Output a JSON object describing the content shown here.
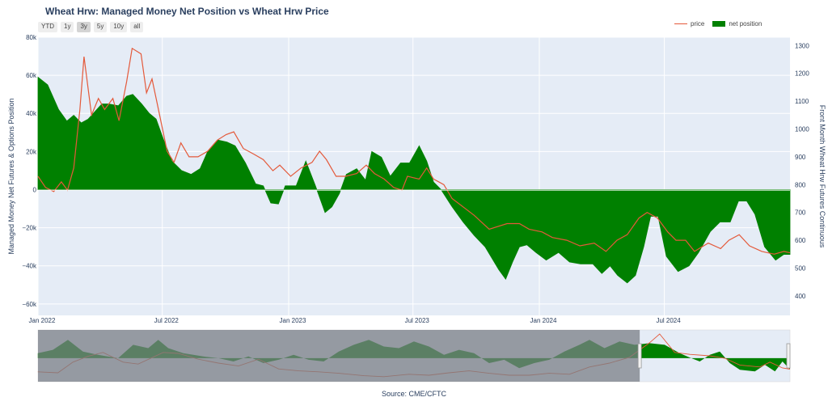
{
  "title": "Wheat Hrw: Managed Money Net Position vs Wheat Hrw Price",
  "range_buttons": [
    {
      "label": "YTD"
    },
    {
      "label": "1y"
    },
    {
      "label": "3y",
      "active": true
    },
    {
      "label": "5y"
    },
    {
      "label": "10y"
    },
    {
      "label": "all"
    }
  ],
  "legend": {
    "price": "price",
    "net_position": "net position"
  },
  "source": "Source: CME/CFTC",
  "colors": {
    "price": "#e4593a",
    "net_position": "#008000",
    "plot_bg": "#e5ecf6"
  },
  "chart_data": {
    "type": "area",
    "title": "Wheat Hrw: Managed Money Net Position vs Wheat Hrw Price",
    "x_range": [
      "2022-01-01",
      "2024-12-31"
    ],
    "xlabel": "",
    "ylabel_left": "Managed Money Net Futures & Options Position",
    "ylabel_right": "Front Month Wheat Hrw Futures Continuous",
    "ylim_left": [
      -66000,
      80000
    ],
    "ylim_right": [
      330,
      1330
    ],
    "x_ticks": [
      {
        "date": "2022-01-01",
        "label": "Jan 2022"
      },
      {
        "date": "2022-07-01",
        "label": "Jul 2022"
      },
      {
        "date": "2023-01-01",
        "label": "Jan 2023"
      },
      {
        "date": "2023-07-01",
        "label": "Jul 2023"
      },
      {
        "date": "2024-01-01",
        "label": "Jan 2024"
      },
      {
        "date": "2024-07-01",
        "label": "Jul 2024"
      }
    ],
    "y_ticks_left": [
      {
        "value": 80000,
        "label": "80k"
      },
      {
        "value": 60000,
        "label": "60k"
      },
      {
        "value": 40000,
        "label": "40k"
      },
      {
        "value": 20000,
        "label": "20k"
      },
      {
        "value": 0,
        "label": "0"
      },
      {
        "value": -20000,
        "label": "−20k"
      },
      {
        "value": -40000,
        "label": "−40k"
      },
      {
        "value": -60000,
        "label": "−60k"
      }
    ],
    "y_ticks_right": [
      {
        "value": 1300,
        "label": "1300"
      },
      {
        "value": 1200,
        "label": "1200"
      },
      {
        "value": 1100,
        "label": "1100"
      },
      {
        "value": 1000,
        "label": "1000"
      },
      {
        "value": 900,
        "label": "900"
      },
      {
        "value": 800,
        "label": "800"
      },
      {
        "value": 700,
        "label": "700"
      },
      {
        "value": 600,
        "label": "600"
      },
      {
        "value": 500,
        "label": "500"
      },
      {
        "value": 400,
        "label": "400"
      }
    ],
    "series": [
      {
        "name": "net position",
        "axis": "left",
        "points": [
          [
            "2022-01-01",
            59000
          ],
          [
            "2022-01-15",
            55000
          ],
          [
            "2022-01-31",
            42000
          ],
          [
            "2022-02-12",
            36000
          ],
          [
            "2022-02-22",
            39000
          ],
          [
            "2022-03-05",
            35000
          ],
          [
            "2022-03-15",
            37000
          ],
          [
            "2022-03-25",
            41000
          ],
          [
            "2022-04-04",
            45000
          ],
          [
            "2022-04-14",
            45000
          ],
          [
            "2022-04-28",
            44000
          ],
          [
            "2022-05-10",
            49000
          ],
          [
            "2022-05-19",
            50000
          ],
          [
            "2022-06-01",
            45000
          ],
          [
            "2022-06-12",
            40000
          ],
          [
            "2022-06-22",
            37000
          ],
          [
            "2022-07-02",
            27000
          ],
          [
            "2022-07-15",
            15000
          ],
          [
            "2022-07-29",
            10000
          ],
          [
            "2022-08-12",
            8000
          ],
          [
            "2022-08-25",
            11000
          ],
          [
            "2022-09-05",
            20000
          ],
          [
            "2022-09-20",
            26000
          ],
          [
            "2022-10-03",
            25000
          ],
          [
            "2022-10-15",
            23000
          ],
          [
            "2022-10-30",
            14000
          ],
          [
            "2022-11-14",
            3000
          ],
          [
            "2022-11-25",
            2000
          ],
          [
            "2022-12-06",
            -7000
          ],
          [
            "2022-12-17",
            -7500
          ],
          [
            "2022-12-27",
            2000
          ],
          [
            "2023-01-12",
            2000
          ],
          [
            "2023-01-26",
            15000
          ],
          [
            "2023-02-09",
            2000
          ],
          [
            "2023-02-23",
            -12000
          ],
          [
            "2023-03-05",
            -9000
          ],
          [
            "2023-03-16",
            -2000
          ],
          [
            "2023-03-26",
            8000
          ],
          [
            "2023-04-10",
            11000
          ],
          [
            "2023-04-23",
            5000
          ],
          [
            "2023-05-02",
            20000
          ],
          [
            "2023-05-16",
            17000
          ],
          [
            "2023-05-29",
            7000
          ],
          [
            "2023-06-13",
            14000
          ],
          [
            "2023-06-26",
            14000
          ],
          [
            "2023-07-10",
            23000
          ],
          [
            "2023-07-21",
            15000
          ],
          [
            "2023-07-31",
            4000
          ],
          [
            "2023-08-11",
            0
          ],
          [
            "2023-08-27",
            -9000
          ],
          [
            "2023-09-12",
            -17000
          ],
          [
            "2023-09-28",
            -24000
          ],
          [
            "2023-10-14",
            -30000
          ],
          [
            "2023-11-03",
            -42000
          ],
          [
            "2023-11-13",
            -47000
          ],
          [
            "2023-11-23",
            -38000
          ],
          [
            "2023-12-03",
            -30000
          ],
          [
            "2023-12-14",
            -29000
          ],
          [
            "2023-12-27",
            -33000
          ],
          [
            "2024-01-11",
            -37000
          ],
          [
            "2024-01-29",
            -33000
          ],
          [
            "2024-02-14",
            -38000
          ],
          [
            "2024-03-01",
            -39000
          ],
          [
            "2024-03-19",
            -39000
          ],
          [
            "2024-04-01",
            -44000
          ],
          [
            "2024-04-13",
            -40000
          ],
          [
            "2024-04-24",
            -45000
          ],
          [
            "2024-05-08",
            -49000
          ],
          [
            "2024-05-20",
            -45000
          ],
          [
            "2024-06-01",
            -30000
          ],
          [
            "2024-06-11",
            -14000
          ],
          [
            "2024-06-22",
            -14000
          ],
          [
            "2024-07-04",
            -35000
          ],
          [
            "2024-07-21",
            -43000
          ],
          [
            "2024-08-06",
            -40000
          ],
          [
            "2024-08-20",
            -33000
          ],
          [
            "2024-09-06",
            -22000
          ],
          [
            "2024-09-20",
            -17000
          ],
          [
            "2024-10-05",
            -17000
          ],
          [
            "2024-10-17",
            -6000
          ],
          [
            "2024-10-29",
            -6000
          ],
          [
            "2024-11-10",
            -13000
          ],
          [
            "2024-11-24",
            -30000
          ],
          [
            "2024-12-10",
            -37000
          ],
          [
            "2024-12-22",
            -34000
          ],
          [
            "2024-12-31",
            -34000
          ]
        ]
      },
      {
        "name": "price",
        "axis": "right",
        "points": [
          [
            "2022-01-01",
            830
          ],
          [
            "2022-01-12",
            790
          ],
          [
            "2022-01-24",
            775
          ],
          [
            "2022-02-04",
            810
          ],
          [
            "2022-02-13",
            780
          ],
          [
            "2022-02-22",
            860
          ],
          [
            "2022-03-03",
            1070
          ],
          [
            "2022-03-09",
            1260
          ],
          [
            "2022-03-20",
            1050
          ],
          [
            "2022-03-30",
            1110
          ],
          [
            "2022-04-08",
            1070
          ],
          [
            "2022-04-20",
            1110
          ],
          [
            "2022-04-29",
            1030
          ],
          [
            "2022-05-10",
            1170
          ],
          [
            "2022-05-18",
            1290
          ],
          [
            "2022-05-31",
            1270
          ],
          [
            "2022-06-08",
            1130
          ],
          [
            "2022-06-16",
            1180
          ],
          [
            "2022-06-22",
            1110
          ],
          [
            "2022-07-08",
            920
          ],
          [
            "2022-07-18",
            880
          ],
          [
            "2022-07-28",
            950
          ],
          [
            "2022-08-09",
            900
          ],
          [
            "2022-08-22",
            900
          ],
          [
            "2022-09-05",
            920
          ],
          [
            "2022-09-19",
            960
          ],
          [
            "2022-10-02",
            980
          ],
          [
            "2022-10-13",
            990
          ],
          [
            "2022-10-27",
            930
          ],
          [
            "2022-11-11",
            910
          ],
          [
            "2022-11-25",
            890
          ],
          [
            "2022-12-09",
            850
          ],
          [
            "2022-12-19",
            870
          ],
          [
            "2023-01-04",
            830
          ],
          [
            "2023-01-19",
            860
          ],
          [
            "2023-02-04",
            880
          ],
          [
            "2023-02-15",
            920
          ],
          [
            "2023-02-25",
            890
          ],
          [
            "2023-03-11",
            830
          ],
          [
            "2023-03-25",
            830
          ],
          [
            "2023-04-10",
            840
          ],
          [
            "2023-04-24",
            870
          ],
          [
            "2023-05-06",
            840
          ],
          [
            "2023-05-20",
            820
          ],
          [
            "2023-06-03",
            790
          ],
          [
            "2023-06-15",
            780
          ],
          [
            "2023-06-23",
            830
          ],
          [
            "2023-07-10",
            820
          ],
          [
            "2023-07-21",
            860
          ],
          [
            "2023-07-31",
            820
          ],
          [
            "2023-08-15",
            800
          ],
          [
            "2023-08-27",
            750
          ],
          [
            "2023-09-12",
            720
          ],
          [
            "2023-09-28",
            690
          ],
          [
            "2023-10-20",
            640
          ],
          [
            "2023-11-15",
            660
          ],
          [
            "2023-12-03",
            660
          ],
          [
            "2023-12-17",
            640
          ],
          [
            "2024-01-05",
            630
          ],
          [
            "2024-01-20",
            610
          ],
          [
            "2024-02-10",
            600
          ],
          [
            "2024-02-29",
            580
          ],
          [
            "2024-03-21",
            590
          ],
          [
            "2024-04-07",
            560
          ],
          [
            "2024-04-23",
            600
          ],
          [
            "2024-05-08",
            620
          ],
          [
            "2024-05-25",
            680
          ],
          [
            "2024-06-06",
            700
          ],
          [
            "2024-06-21",
            680
          ],
          [
            "2024-07-06",
            630
          ],
          [
            "2024-07-18",
            600
          ],
          [
            "2024-08-01",
            600
          ],
          [
            "2024-08-14",
            560
          ],
          [
            "2024-09-03",
            590
          ],
          [
            "2024-09-21",
            570
          ],
          [
            "2024-10-03",
            600
          ],
          [
            "2024-10-18",
            620
          ],
          [
            "2024-11-02",
            580
          ],
          [
            "2024-11-20",
            560
          ],
          [
            "2024-12-08",
            550
          ],
          [
            "2024-12-22",
            560
          ],
          [
            "2024-12-31",
            555
          ]
        ]
      }
    ],
    "range_slider": {
      "full_range": [
        "2010-01-01",
        "2024-12-31"
      ],
      "selected": [
        "2022-01-01",
        "2024-12-31"
      ],
      "net_points": [
        [
          2010.0,
          15000
        ],
        [
          2010.3,
          25000
        ],
        [
          2010.6,
          55000
        ],
        [
          2010.9,
          20000
        ],
        [
          2011.2,
          10000
        ],
        [
          2011.6,
          0
        ],
        [
          2011.9,
          40000
        ],
        [
          2012.2,
          30000
        ],
        [
          2012.4,
          55000
        ],
        [
          2012.6,
          30000
        ],
        [
          2012.9,
          15000
        ],
        [
          2013.3,
          5000
        ],
        [
          2013.6,
          0
        ],
        [
          2013.9,
          -10000
        ],
        [
          2014.2,
          5000
        ],
        [
          2014.5,
          -15000
        ],
        [
          2014.8,
          -5000
        ],
        [
          2015.1,
          10000
        ],
        [
          2015.4,
          -5000
        ],
        [
          2015.7,
          -10000
        ],
        [
          2016.0,
          20000
        ],
        [
          2016.3,
          40000
        ],
        [
          2016.6,
          55000
        ],
        [
          2016.9,
          35000
        ],
        [
          2017.2,
          30000
        ],
        [
          2017.5,
          50000
        ],
        [
          2017.8,
          35000
        ],
        [
          2018.1,
          10000
        ],
        [
          2018.4,
          25000
        ],
        [
          2018.7,
          15000
        ],
        [
          2019.0,
          -15000
        ],
        [
          2019.3,
          -5000
        ],
        [
          2019.6,
          -30000
        ],
        [
          2019.9,
          -15000
        ],
        [
          2020.2,
          -5000
        ],
        [
          2020.5,
          20000
        ],
        [
          2020.8,
          40000
        ],
        [
          2021.0,
          55000
        ],
        [
          2021.3,
          30000
        ],
        [
          2021.6,
          50000
        ],
        [
          2021.9,
          40000
        ],
        [
          2022.2,
          45000
        ],
        [
          2022.5,
          40000
        ],
        [
          2022.8,
          15000
        ],
        [
          2023.0,
          2000
        ],
        [
          2023.2,
          -10000
        ],
        [
          2023.4,
          10000
        ],
        [
          2023.6,
          20000
        ],
        [
          2023.8,
          -15000
        ],
        [
          2024.0,
          -35000
        ],
        [
          2024.3,
          -40000
        ],
        [
          2024.5,
          -20000
        ],
        [
          2024.7,
          -40000
        ],
        [
          2024.85,
          -10000
        ],
        [
          2025.0,
          -34000
        ]
      ],
      "price_points": [
        [
          2010.0,
          500
        ],
        [
          2010.4,
          480
        ],
        [
          2010.7,
          700
        ],
        [
          2011.0,
          820
        ],
        [
          2011.3,
          900
        ],
        [
          2011.7,
          700
        ],
        [
          2012.0,
          660
        ],
        [
          2012.5,
          900
        ],
        [
          2012.8,
          880
        ],
        [
          2013.2,
          760
        ],
        [
          2013.6,
          680
        ],
        [
          2014.0,
          620
        ],
        [
          2014.4,
          760
        ],
        [
          2014.8,
          560
        ],
        [
          2015.2,
          520
        ],
        [
          2015.6,
          500
        ],
        [
          2016.0,
          470
        ],
        [
          2016.5,
          420
        ],
        [
          2016.9,
          400
        ],
        [
          2017.4,
          450
        ],
        [
          2017.8,
          430
        ],
        [
          2018.2,
          480
        ],
        [
          2018.6,
          520
        ],
        [
          2019.0,
          470
        ],
        [
          2019.4,
          430
        ],
        [
          2019.8,
          430
        ],
        [
          2020.2,
          470
        ],
        [
          2020.6,
          450
        ],
        [
          2021.0,
          600
        ],
        [
          2021.4,
          680
        ],
        [
          2021.8,
          800
        ],
        [
          2022.2,
          1100
        ],
        [
          2022.4,
          1280
        ],
        [
          2022.7,
          900
        ],
        [
          2023.0,
          860
        ],
        [
          2023.4,
          830
        ],
        [
          2023.7,
          780
        ],
        [
          2024.0,
          640
        ],
        [
          2024.4,
          600
        ],
        [
          2024.6,
          700
        ],
        [
          2024.85,
          580
        ],
        [
          2025.0,
          555
        ]
      ]
    }
  }
}
